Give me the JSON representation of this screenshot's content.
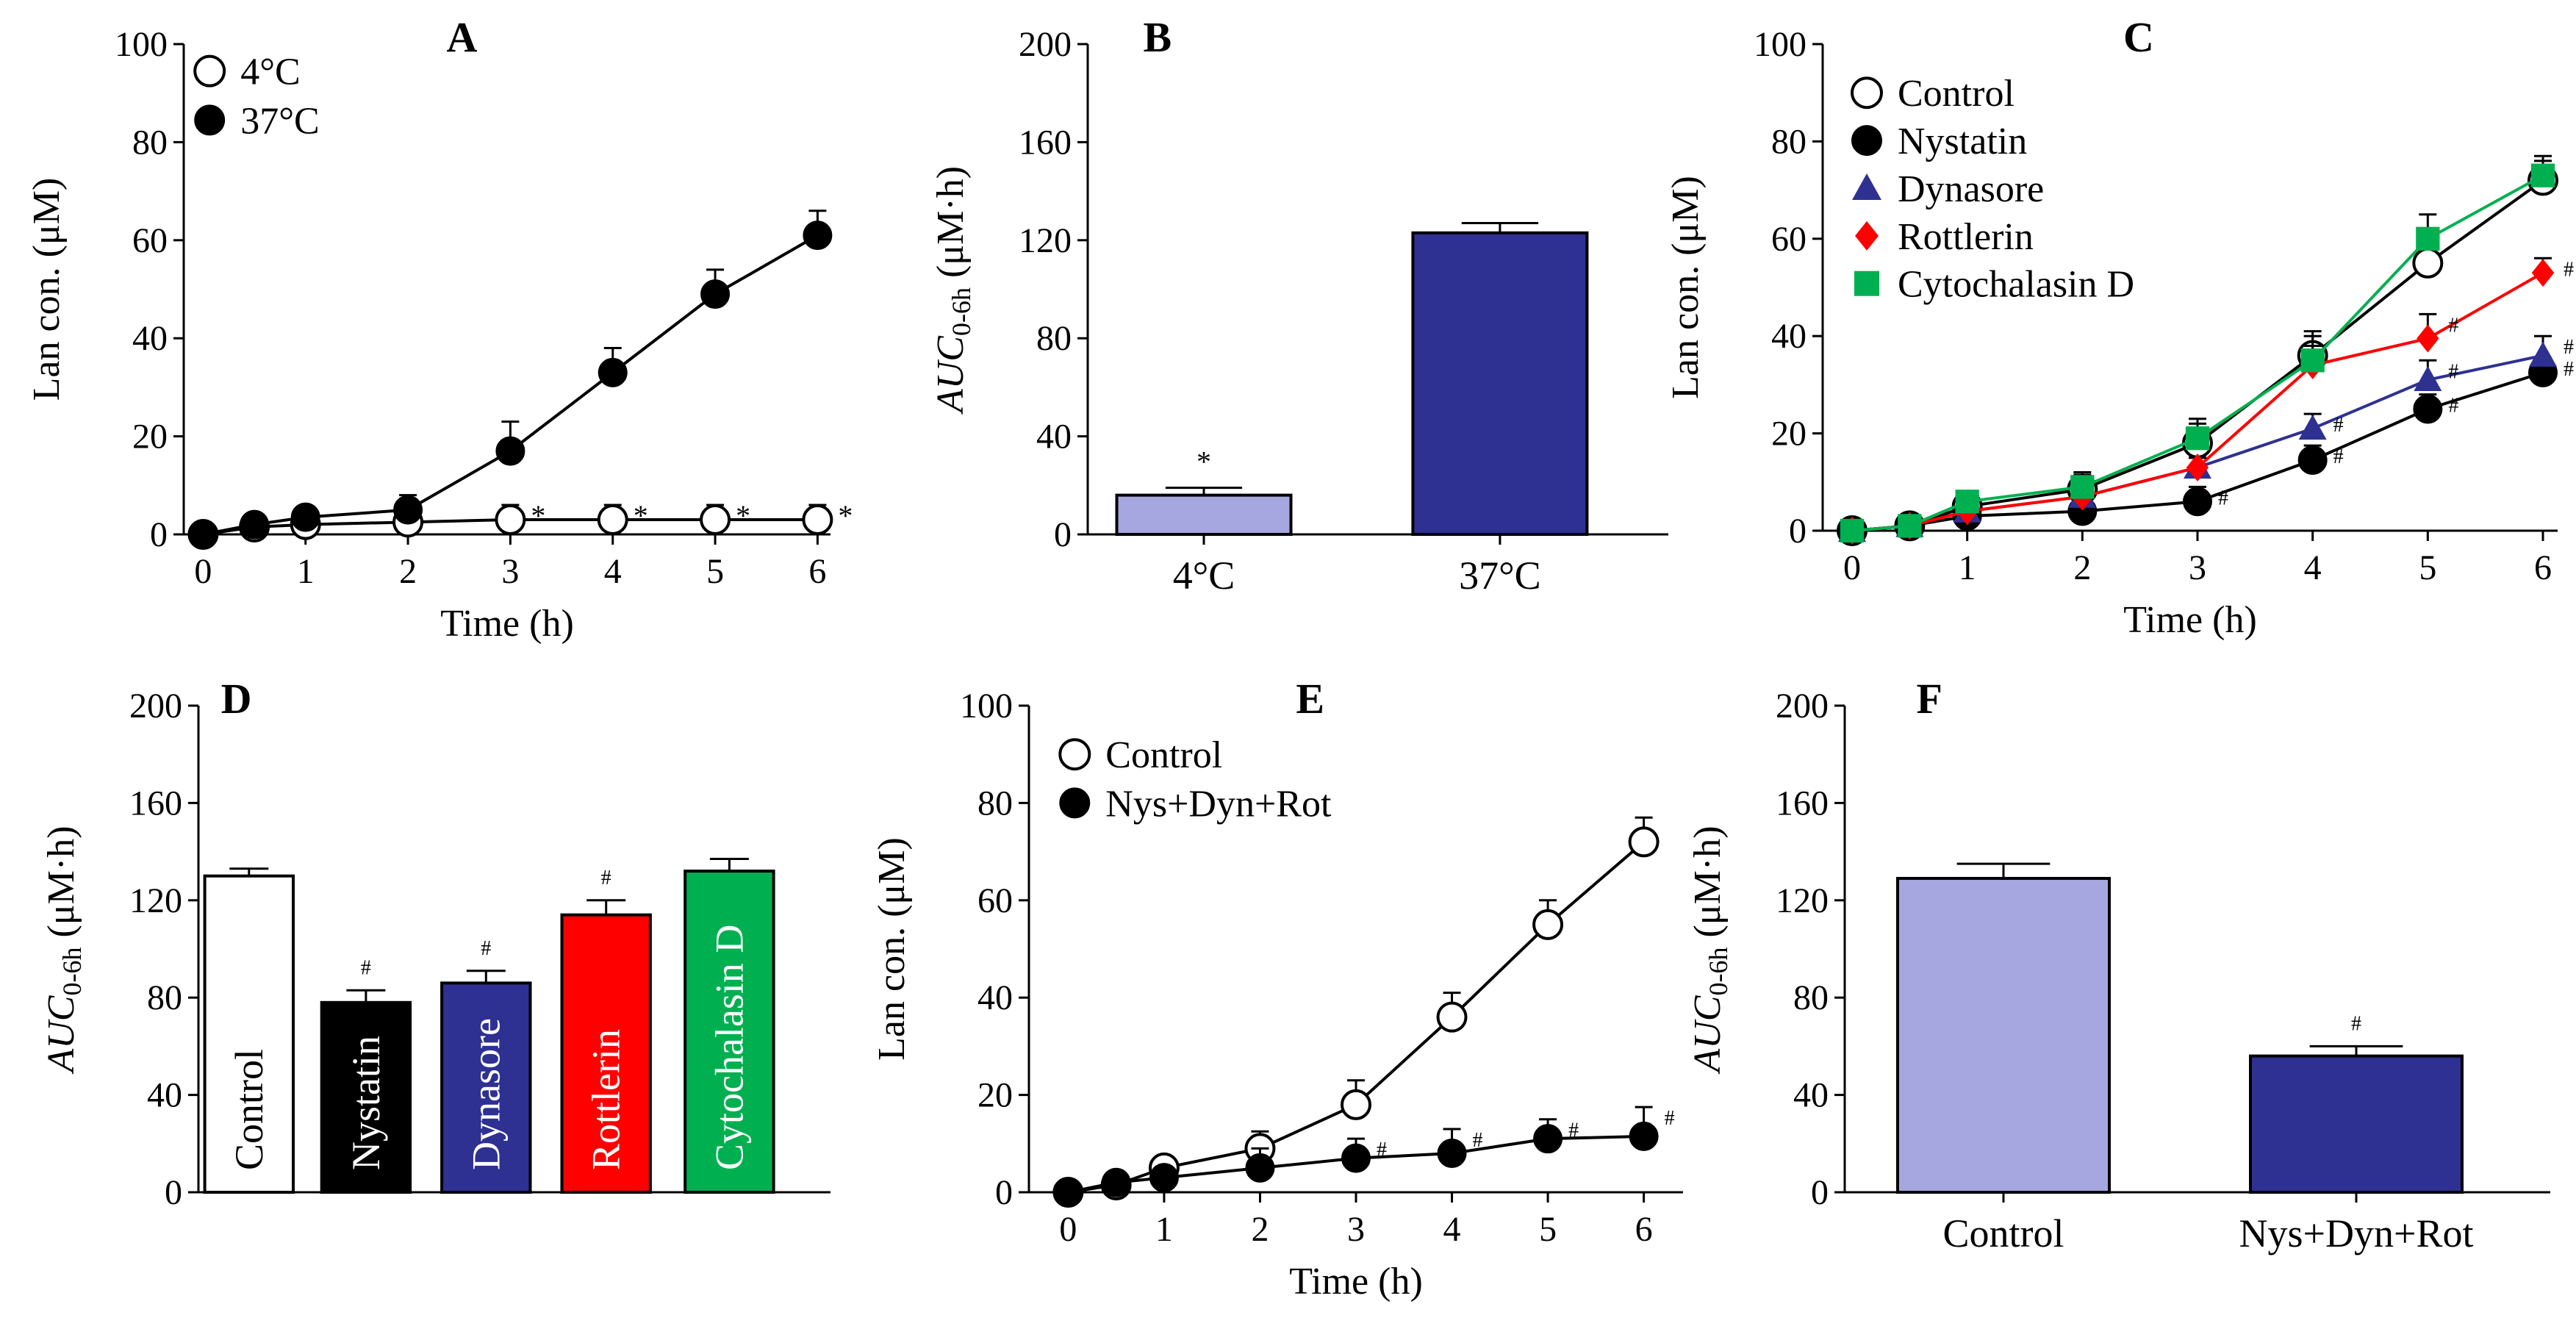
{
  "chart_data": [
    {
      "id": "A",
      "type": "line",
      "panel_label": "A",
      "xlabel": "Time (h)",
      "ylabel": "Lan con. (μM)",
      "xlim": [
        0,
        6
      ],
      "ylim": [
        0,
        100
      ],
      "xticks": [
        "0",
        "1",
        "2",
        "3",
        "4",
        "5",
        "6"
      ],
      "yticks": [
        "0",
        "20",
        "40",
        "60",
        "80",
        "100"
      ],
      "legend": "top-left",
      "series": [
        {
          "name": "4°C",
          "marker": "open-circle",
          "color": "#000000",
          "x": [
            0,
            0.5,
            1,
            2,
            3,
            4,
            5,
            6
          ],
          "y": [
            0,
            1.5,
            2,
            2.5,
            3,
            3,
            3,
            3
          ],
          "err": [
            0.5,
            1.5,
            1.5,
            2,
            3,
            3,
            3,
            3
          ],
          "annotations": [
            null,
            null,
            null,
            null,
            "*",
            "*",
            "*",
            "*"
          ]
        },
        {
          "name": "37°C",
          "marker": "filled-circle",
          "color": "#000000",
          "x": [
            0,
            0.5,
            1,
            2,
            3,
            4,
            5,
            6
          ],
          "y": [
            0,
            2,
            3.5,
            5,
            17,
            33,
            49,
            61
          ],
          "err": [
            0.5,
            1.5,
            1.5,
            3,
            6,
            5,
            5,
            5
          ],
          "annotations": [
            null,
            null,
            null,
            null,
            null,
            null,
            null,
            null
          ]
        }
      ]
    },
    {
      "id": "B",
      "type": "bar",
      "panel_label": "B",
      "ylabel_main": "AUC",
      "ylabel_sub": "0-6h",
      "ylabel_unit": " (μM·h)",
      "ylim": [
        0,
        200
      ],
      "yticks": [
        "0",
        "40",
        "80",
        "120",
        "160",
        "200"
      ],
      "categories": [
        "4°C",
        "37°C"
      ],
      "values": [
        16,
        123
      ],
      "err": [
        3,
        4
      ],
      "colors": [
        "#a6a6e0",
        "#2e3192"
      ],
      "annotations": [
        "*",
        null
      ],
      "label_placement": "below"
    },
    {
      "id": "C",
      "type": "line",
      "panel_label": "C",
      "xlabel": "Time (h)",
      "ylabel": "Lan con. (μM)",
      "xlim": [
        0,
        6
      ],
      "ylim": [
        0,
        100
      ],
      "xticks": [
        "0",
        "1",
        "2",
        "3",
        "4",
        "5",
        "6"
      ],
      "yticks": [
        "0",
        "20",
        "40",
        "60",
        "80",
        "100"
      ],
      "legend": "top-left",
      "series": [
        {
          "name": "Control",
          "marker": "open-circle",
          "color": "#000000",
          "x": [
            0,
            0.5,
            1,
            2,
            3,
            4,
            5,
            6
          ],
          "y": [
            0,
            1,
            5,
            8.5,
            18,
            36,
            55,
            72
          ],
          "err": [
            0.5,
            1,
            2,
            3,
            4,
            5,
            5,
            4
          ],
          "annotations": [
            null,
            null,
            null,
            null,
            null,
            null,
            null,
            null
          ]
        },
        {
          "name": "Nystatin",
          "marker": "filled-circle",
          "color": "#000000",
          "x": [
            0,
            0.5,
            1,
            2,
            3,
            4,
            5,
            6
          ],
          "y": [
            0,
            1,
            3,
            4,
            6,
            14.5,
            25,
            32.5
          ],
          "err": [
            0.5,
            1,
            1.5,
            2,
            3,
            3,
            3,
            3
          ],
          "annotations": [
            null,
            null,
            null,
            null,
            "#",
            "#",
            "#",
            "#"
          ]
        },
        {
          "name": "Dynasore",
          "marker": "triangle",
          "color": "#2e3192",
          "x": [
            0,
            0.5,
            1,
            2,
            3,
            4,
            5,
            6
          ],
          "y": [
            0,
            1,
            4,
            7,
            13,
            21,
            31,
            36
          ],
          "err": [
            0.5,
            1,
            1.5,
            2,
            2,
            3,
            4,
            4
          ],
          "annotations": [
            null,
            null,
            null,
            null,
            null,
            "#",
            "#",
            "#"
          ]
        },
        {
          "name": "Rottlerin",
          "marker": "diamond",
          "color": "#ff0000",
          "x": [
            0,
            0.5,
            1,
            2,
            3,
            4,
            5,
            6
          ],
          "y": [
            0,
            1,
            4,
            7,
            13,
            34,
            39.5,
            53
          ],
          "err": [
            0.5,
            1,
            1.5,
            2,
            2,
            4,
            5,
            3
          ],
          "annotations": [
            null,
            null,
            null,
            null,
            null,
            null,
            "#",
            "#"
          ]
        },
        {
          "name": "Cytochalasin D",
          "marker": "square",
          "color": "#00b050",
          "x": [
            0,
            0.5,
            1,
            2,
            3,
            4,
            5,
            6
          ],
          "y": [
            0,
            1,
            6,
            9,
            19,
            35,
            60,
            73
          ],
          "err": [
            0.5,
            1,
            2,
            3,
            4,
            5,
            5,
            4
          ],
          "annotations": [
            null,
            null,
            null,
            null,
            null,
            null,
            null,
            null
          ]
        }
      ]
    },
    {
      "id": "D",
      "type": "bar",
      "panel_label": "D",
      "ylabel_main": "AUC",
      "ylabel_sub": "0-6h",
      "ylabel_unit": " (μM·h)",
      "ylim": [
        0,
        200
      ],
      "yticks": [
        "0",
        "40",
        "80",
        "120",
        "160",
        "200"
      ],
      "categories": [
        "Control",
        "Nystatin",
        "Dynasore",
        "Rottlerin",
        "Cytochalasin D"
      ],
      "values": [
        130,
        78,
        86,
        114,
        132
      ],
      "err": [
        3,
        5,
        5,
        6,
        5
      ],
      "colors": [
        "#ffffff",
        "#000000",
        "#2e3192",
        "#ff0000",
        "#00b050"
      ],
      "annotations": [
        null,
        "#",
        "#",
        "#",
        null
      ],
      "label_placement": "inside-vertical"
    },
    {
      "id": "E",
      "type": "line",
      "panel_label": "E",
      "xlabel": "Time (h)",
      "ylabel": "Lan con. (μM)",
      "xlim": [
        0,
        6
      ],
      "ylim": [
        0,
        100
      ],
      "xticks": [
        "0",
        "1",
        "2",
        "3",
        "4",
        "5",
        "6"
      ],
      "yticks": [
        "0",
        "20",
        "40",
        "60",
        "80",
        "100"
      ],
      "legend": "top-left",
      "series": [
        {
          "name": "Control",
          "marker": "open-circle",
          "color": "#000000",
          "x": [
            0,
            0.5,
            1,
            2,
            3,
            4,
            5,
            6
          ],
          "y": [
            0,
            1.5,
            5,
            9,
            18,
            36,
            55,
            72
          ],
          "err": [
            0.5,
            1,
            2,
            3.5,
            5,
            5,
            5,
            5
          ],
          "annotations": [
            null,
            null,
            null,
            null,
            null,
            null,
            null,
            null
          ]
        },
        {
          "name": "Nys+Dyn+Rot",
          "marker": "filled-circle",
          "color": "#000000",
          "x": [
            0,
            0.5,
            1,
            2,
            3,
            4,
            5,
            6
          ],
          "y": [
            0,
            2,
            3,
            5,
            7,
            8,
            11,
            11.5
          ],
          "err": [
            0.5,
            1,
            1.5,
            4,
            4,
            5,
            4,
            6
          ],
          "annotations": [
            null,
            null,
            null,
            null,
            "#",
            "#",
            "#",
            "#"
          ]
        }
      ]
    },
    {
      "id": "F",
      "type": "bar",
      "panel_label": "F",
      "ylabel_main": "AUC",
      "ylabel_sub": "0-6h",
      "ylabel_unit": " (μM·h)",
      "ylim": [
        0,
        200
      ],
      "yticks": [
        "0",
        "40",
        "80",
        "120",
        "160",
        "200"
      ],
      "categories": [
        "Control",
        "Nys+Dyn+Rot"
      ],
      "values": [
        129,
        56
      ],
      "err": [
        6,
        4
      ],
      "colors": [
        "#a6a6e0",
        "#2e3192"
      ],
      "annotations": [
        null,
        "#"
      ],
      "label_placement": "below"
    }
  ]
}
